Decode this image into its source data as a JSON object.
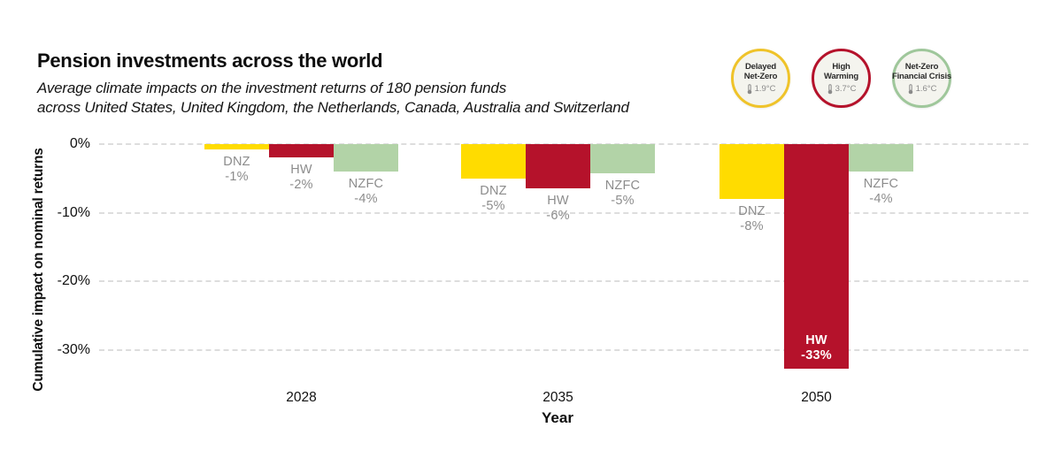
{
  "header": {
    "title": "Pension investments across the world",
    "subtitle_line1": "Average climate impacts on the investment returns of 180 pension funds",
    "subtitle_line2": "across United States, United Kingdom, the Netherlands, Canada, Australia and Switzerland"
  },
  "legend_badges": [
    {
      "label_lines": [
        "Delayed",
        "Net-Zero"
      ],
      "temperature": "1.9°C",
      "ring_color": "#EFC32A"
    },
    {
      "label_lines": [
        "High",
        "Warming"
      ],
      "temperature": "3.7°C",
      "ring_color": "#B5122B"
    },
    {
      "label_lines": [
        "Net-Zero",
        "Financial Crisis"
      ],
      "temperature": "1.6°C",
      "ring_color": "#9FC79B"
    }
  ],
  "chart_data": {
    "type": "bar",
    "title": "Pension investments across the world",
    "xlabel": "Year",
    "ylabel": "Cumulative impact on nominal returns",
    "categories": [
      "2028",
      "2035",
      "2050"
    ],
    "series": [
      {
        "code": "DNZ",
        "name": "Delayed Net-Zero",
        "color": "#FFDC00",
        "values": [
          -1,
          -5,
          -8
        ],
        "render_values": [
          -0.8,
          -5.0,
          -8.0
        ],
        "value_labels": [
          "-1%",
          "-5%",
          "-8%"
        ],
        "label_placement": [
          "below",
          "below",
          "below"
        ]
      },
      {
        "code": "HW",
        "name": "High Warming",
        "color": "#B5122B",
        "values": [
          -2,
          -6,
          -33
        ],
        "render_values": [
          -1.9,
          -6.4,
          -32.8
        ],
        "value_labels": [
          "-2%",
          "-6%",
          "-33%"
        ],
        "label_placement": [
          "below",
          "below",
          "inside"
        ]
      },
      {
        "code": "NZFC",
        "name": "Net-Zero Financial Crisis",
        "color": "#B2D3A7",
        "values": [
          -4,
          -5,
          -4
        ],
        "render_values": [
          -4.0,
          -4.3,
          -4.0
        ],
        "value_labels": [
          "-4%",
          "-5%",
          "-4%"
        ],
        "label_placement": [
          "below",
          "below",
          "below"
        ]
      }
    ],
    "y_ticks": [
      {
        "label": "0%",
        "value": 0
      },
      {
        "label": "-10%",
        "value": -10
      },
      {
        "label": "-20%",
        "value": -20
      },
      {
        "label": "-30%",
        "value": -30
      }
    ],
    "ylim": [
      -35,
      0
    ],
    "grid": "horizontal dashed",
    "legend_position": "top-right"
  },
  "colors": {
    "background": "#FFFFFF",
    "grid": "#DDDDDD",
    "bar_label": "#8C8C8C",
    "inside_label": "#FFFFFF",
    "text": "#111111",
    "badge_fill": "#F4F4EE",
    "badge_temp_text": "#8A8A8A"
  }
}
